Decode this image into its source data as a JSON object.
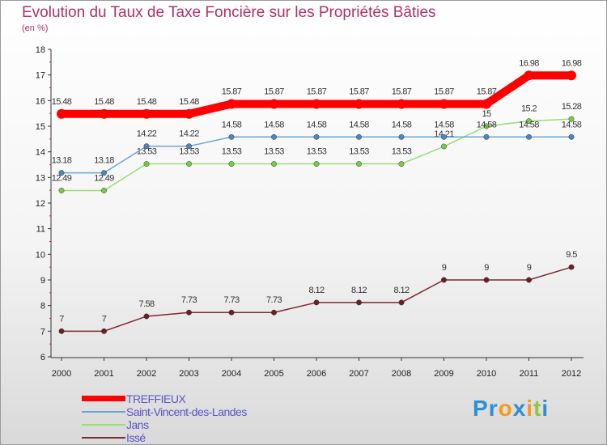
{
  "title": "Evolution du Taux de Taxe Foncière sur les Propriétés Bâties",
  "unit": "(en %)",
  "logo": {
    "letters": [
      "P",
      "r",
      "o",
      "x",
      "i",
      "t",
      "i"
    ],
    "colors": [
      "#2e8fd6",
      "#2e8fd6",
      "#f29a1c",
      "#2e8fd6",
      "#f29a1c",
      "#8dc63f",
      "#2e8fd6"
    ]
  },
  "chart_data": {
    "type": "line",
    "title": "Evolution du Taux de Taxe Foncière sur les Propriétés Bâties",
    "ylabel": "(en %)",
    "xlabel": "",
    "ylim": [
      6,
      18
    ],
    "yticks": [
      6,
      7,
      8,
      9,
      10,
      11,
      12,
      13,
      14,
      15,
      16,
      17,
      18
    ],
    "x": [
      "2000",
      "2001",
      "2002",
      "2003",
      "2004",
      "2005",
      "2006",
      "2007",
      "2008",
      "2009",
      "2010",
      "2011",
      "2012"
    ],
    "series": [
      {
        "name": "TREFFIEUX",
        "color": "#ff0000",
        "values": [
          15.48,
          15.48,
          15.48,
          15.48,
          15.87,
          15.87,
          15.87,
          15.87,
          15.87,
          15.87,
          15.87,
          16.98,
          16.98
        ]
      },
      {
        "name": "Saint-Vincent-des-Landes",
        "color": "#6fa3cf",
        "values": [
          13.18,
          13.18,
          14.22,
          14.22,
          14.58,
          14.58,
          14.58,
          14.58,
          14.58,
          14.58,
          14.58,
          14.58,
          14.58
        ]
      },
      {
        "name": "Jans",
        "color": "#99dd77",
        "values": [
          12.49,
          12.49,
          13.53,
          13.53,
          13.53,
          13.53,
          13.53,
          13.53,
          13.53,
          14.21,
          15,
          15.2,
          15.28
        ]
      },
      {
        "name": "Issé",
        "color": "#7a2a30",
        "values": [
          7,
          7,
          7.58,
          7.73,
          7.73,
          7.73,
          8.12,
          8.12,
          8.12,
          9,
          9,
          9,
          9.5
        ]
      }
    ],
    "grid": false,
    "legend": "bottom-left"
  }
}
